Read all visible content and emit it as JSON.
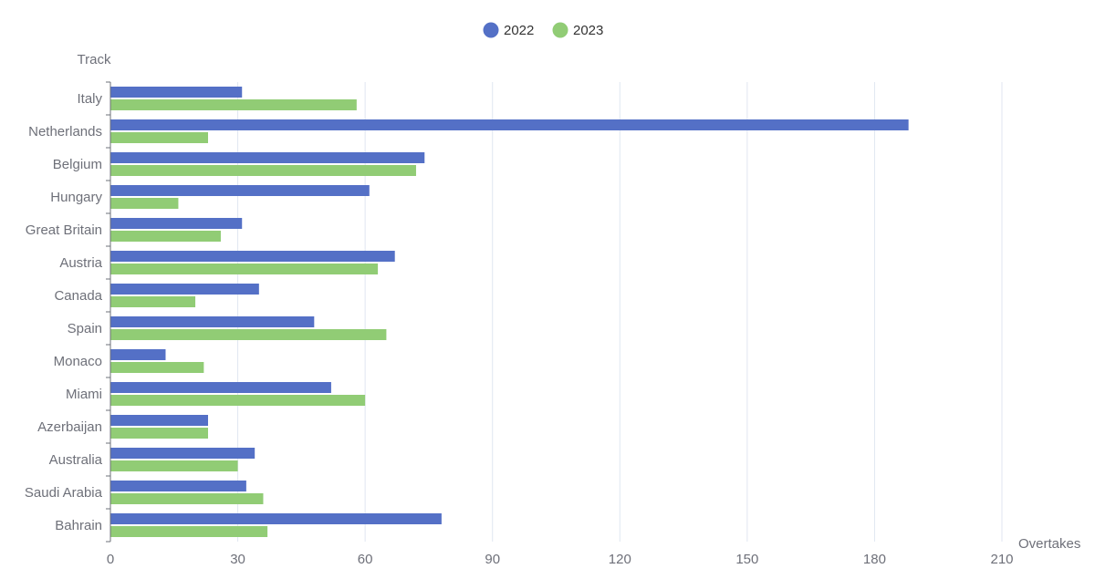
{
  "chart_data": {
    "type": "bar",
    "orientation": "horizontal",
    "title": "",
    "xlabel": "Overtakes",
    "ylabel": "Track",
    "xlim": [
      0,
      210
    ],
    "xticks": [
      0,
      30,
      60,
      90,
      120,
      150,
      180,
      210
    ],
    "grid": true,
    "legend_position": "top-center",
    "categories": [
      "Bahrain",
      "Saudi Arabia",
      "Australia",
      "Azerbaijan",
      "Miami",
      "Monaco",
      "Spain",
      "Canada",
      "Austria",
      "Great Britain",
      "Hungary",
      "Belgium",
      "Netherlands",
      "Italy"
    ],
    "series": [
      {
        "name": "2022",
        "color": "#5470c6",
        "values": [
          78,
          32,
          34,
          23,
          52,
          13,
          48,
          35,
          67,
          31,
          61,
          74,
          188,
          31
        ]
      },
      {
        "name": "2023",
        "color": "#91cc75",
        "values": [
          37,
          36,
          30,
          23,
          60,
          22,
          65,
          20,
          63,
          26,
          16,
          72,
          23,
          58
        ]
      }
    ]
  }
}
